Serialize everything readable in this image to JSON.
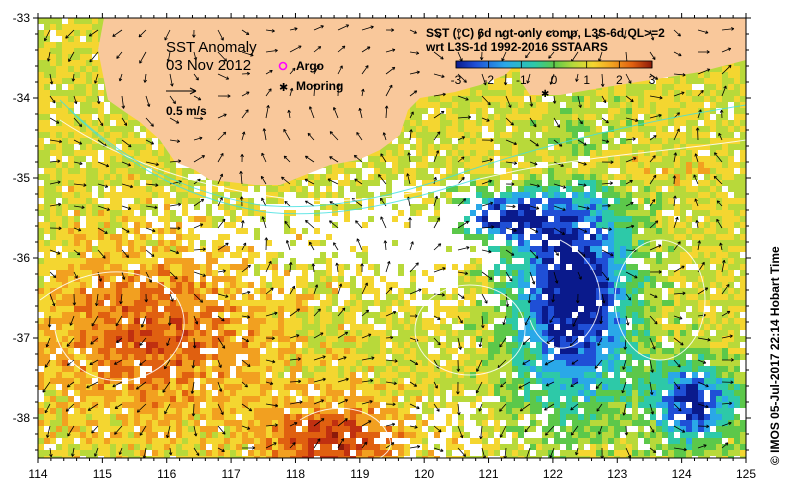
{
  "map": {
    "title": "SST Anomaly",
    "date": "03 Nov 2012",
    "vector_scale_label": "0.5 m/s",
    "legend": {
      "argo": "Argo",
      "mooring": "Mooring",
      "argo_color": "#ff00ff",
      "mooring_color": "#000000"
    },
    "description_line1": "SST (°C) 6d ngt-only comp, L3S-6d QL>=2",
    "description_line2": "wrt L3S-1d 1992-2016 SSTAARS",
    "credit": "©  IMOS 05-Jul-2017 22:14 Hobart Time",
    "land_color": "#f9c89b",
    "x_ticks": [
      "114",
      "115",
      "116",
      "117",
      "118",
      "119",
      "120",
      "121",
      "122",
      "123",
      "124",
      "125"
    ],
    "y_ticks": [
      "-33",
      "-34",
      "-35",
      "-36",
      "-37",
      "-38"
    ],
    "lon_range": [
      114,
      125
    ],
    "lat_range": [
      -33,
      -38.5
    ]
  },
  "colorbar": {
    "ticks": [
      "-3",
      "-2",
      "-1",
      "0",
      "1",
      "2",
      "3"
    ],
    "range": [
      -3,
      3
    ],
    "colors": [
      "#0a1a8c",
      "#1f4fd6",
      "#2aa8e8",
      "#2dc9a8",
      "#5cc84a",
      "#b8d93a",
      "#f4d630",
      "#f2a020",
      "#e06010",
      "#c03010",
      "#8c1a0a"
    ]
  }
}
